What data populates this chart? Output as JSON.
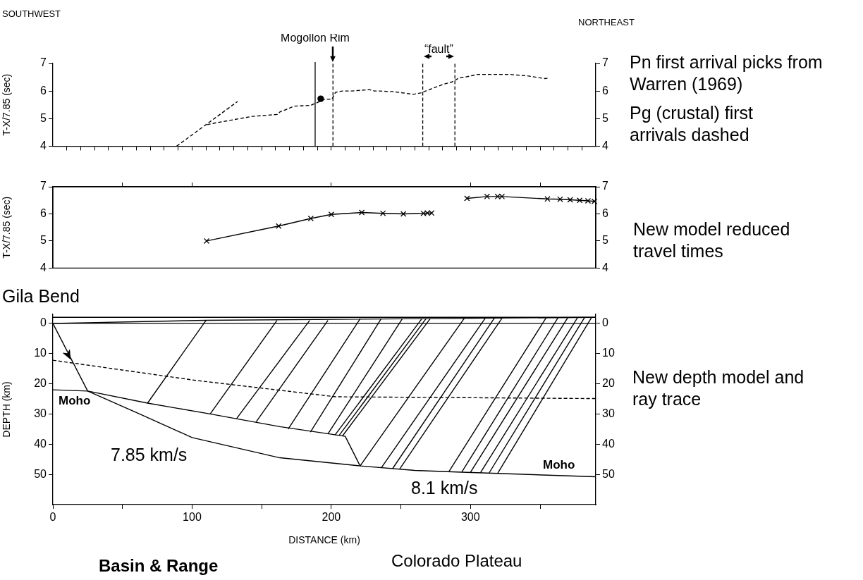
{
  "chart_data": [
    {
      "type": "line",
      "ylabel": "T-X/7.85 (sec)",
      "xlim": [
        0,
        390
      ],
      "ylim": [
        4,
        7
      ],
      "yticks": [
        4,
        5,
        6,
        7
      ],
      "y2lim": [
        4,
        7
      ],
      "y2ticks": [
        4,
        5,
        6,
        7
      ],
      "tick_labels": "y",
      "marker": "none",
      "xticks": [
        {
          "value": 10,
          "label": null
        },
        {
          "value": 20,
          "label": null
        },
        {
          "value": 30,
          "label": null
        },
        {
          "value": 40,
          "label": null
        },
        {
          "value": 50,
          "label": null
        },
        {
          "value": 60,
          "label": null
        },
        {
          "value": 70,
          "label": null
        },
        {
          "value": 80,
          "label": null
        },
        {
          "value": 90,
          "label": null
        },
        {
          "value": 100,
          "label": null
        },
        {
          "value": 110,
          "label": null
        },
        {
          "value": 120,
          "label": null
        },
        {
          "value": 130,
          "label": null
        },
        {
          "value": 140,
          "label": null
        },
        {
          "value": 150,
          "label": null
        },
        {
          "value": 160,
          "label": null
        },
        {
          "value": 170,
          "label": null
        },
        {
          "value": 180,
          "label": null
        },
        {
          "value": 190,
          "label": null
        },
        {
          "value": 200,
          "label": null
        },
        {
          "value": 210,
          "label": null
        },
        {
          "value": 220,
          "label": null
        },
        {
          "value": 230,
          "label": null
        },
        {
          "value": 240,
          "label": null
        },
        {
          "value": 250,
          "label": null
        },
        {
          "value": 260,
          "label": null
        },
        {
          "value": 270,
          "label": null
        },
        {
          "value": 280,
          "label": null
        },
        {
          "value": 290,
          "label": null
        },
        {
          "value": 300,
          "label": null
        },
        {
          "value": 310,
          "label": null
        },
        {
          "value": 320,
          "label": null
        },
        {
          "value": 330,
          "label": null
        },
        {
          "value": 340,
          "label": null
        },
        {
          "value": 350,
          "label": null
        },
        {
          "value": 360,
          "label": null
        },
        {
          "value": 370,
          "label": null
        },
        {
          "value": 380,
          "label": null
        }
      ],
      "series": [
        {
          "color": "#000000",
          "line_style": "dashed",
          "x": [
            88.9,
            132.7
          ],
          "values": [
            4.0,
            5.62
          ]
        },
        {
          "color": "#000000",
          "line_style": "dashed",
          "x": [
            110.8,
            117.5,
            143.4,
            161.3,
            163.3,
            166.1,
            173.3,
            185.3,
            195.2,
            200.4,
            203,
            208,
            215.1,
            227.1,
            231,
            235,
            241,
            244.2,
            259,
            264.2,
            280.8,
            286.8,
            292,
            296.8,
            304.7,
            306.7,
            328.6,
            340.6,
            353.7,
            356.5
          ],
          "values": [
            4.78,
            4.85,
            5.08,
            5.15,
            5.25,
            5.3,
            5.45,
            5.48,
            5.7,
            5.7,
            5.95,
            6.0,
            6.0,
            6.05,
            6.0,
            6.0,
            5.98,
            5.98,
            5.88,
            5.93,
            6.25,
            6.33,
            6.48,
            6.51,
            6.6,
            6.6,
            6.6,
            6.55,
            6.45,
            6.48
          ]
        },
        {
          "color": "#000000",
          "marker": "circle",
          "x": [
            192.4
          ],
          "values": [
            5.72
          ]
        }
      ],
      "ref_lines": [
        {
          "axis": "x",
          "value": 188.4,
          "label": "Mogollon Rim",
          "line_style": "solid"
        },
        {
          "axis": "x",
          "value": 201.2,
          "line_style": "dashed"
        },
        {
          "axis": "x",
          "value": 265.7,
          "line_style": "dashed"
        },
        {
          "axis": "x",
          "value": 288.8,
          "line_style": "dashed"
        }
      ],
      "annotations": [
        "SOUTHWEST",
        "NORTHEAST",
        "Pn first arrival picks from Warren (1969)",
        "Pg (crustal) first arrivals dashed",
        "“fault”"
      ]
    },
    {
      "type": "line",
      "ylabel": "T-X/7.85 (sec)",
      "xlim": [
        0,
        390
      ],
      "ylim": [
        4,
        7
      ],
      "yticks": [
        4,
        5,
        6,
        7
      ],
      "y2lim": [
        4,
        7
      ],
      "y2ticks": [
        4,
        5,
        6,
        7
      ],
      "tick_labels": "y",
      "marker": "cross",
      "xticks": [
        {
          "value": 50,
          "label": null
        },
        {
          "value": 100,
          "label": null
        },
        {
          "value": 200,
          "label": null
        },
        {
          "value": 300,
          "label": null
        },
        {
          "value": 350,
          "label": null
        }
      ],
      "series": [
        {
          "color": "#000000",
          "x": [
            110.4,
            162.2,
            185.3,
            200.0,
            221.9,
            237.1,
            251.8,
            266.2,
            269.0,
            272.1
          ],
          "values": [
            5.0,
            5.55,
            5.83,
            5.98,
            6.05,
            6.02,
            6.0,
            6.02,
            6.03,
            6.03
          ]
        },
        {
          "color": "#000000",
          "x": [
            297.5,
            311.9,
            319.5,
            322.6,
            355.3,
            364.4,
            371.6,
            378.4,
            384.4,
            389
          ],
          "values": [
            6.57,
            6.64,
            6.64,
            6.64,
            6.55,
            6.54,
            6.52,
            6.5,
            6.48,
            6.46
          ]
        }
      ],
      "annotations": [
        "New model reduced travel times"
      ]
    },
    {
      "type": "line",
      "xlabel": "DISTANCE (km)",
      "ylabel": "DEPTH (km)",
      "xlim": [
        0,
        390
      ],
      "ylim": [
        60,
        -3
      ],
      "yticks": [
        0,
        10,
        20,
        30,
        40,
        50
      ],
      "y2lim": [
        60,
        -3
      ],
      "y2ticks": [
        0,
        10,
        20,
        30,
        40,
        50
      ],
      "marker": "none",
      "xticks": [
        0,
        {
          "value": 50,
          "label": null
        },
        100,
        {
          "value": 150,
          "label": null
        },
        200,
        {
          "value": 250,
          "label": null
        },
        300,
        {
          "value": 350,
          "label": null
        }
      ],
      "series": [
        {
          "color": "#000000",
          "x": [
            0,
            25
          ],
          "values": [
            0,
            22.4
          ]
        },
        {
          "color": "#000000",
          "x": [
            0,
            390
          ],
          "values": [
            -2,
            -2
          ]
        },
        {
          "color": "#000000",
          "x": [
            0,
            390
          ],
          "values": [
            0,
            0
          ]
        },
        {
          "color": "#000000",
          "x": [
            0,
            110,
            390
          ],
          "values": [
            0,
            -1,
            -2
          ]
        },
        {
          "color": "#000000",
          "x": [
            0,
            25,
            68,
            113,
            163,
            200,
            210,
            220.7
          ],
          "values": [
            22,
            22.4,
            26.4,
            30,
            34.2,
            36.7,
            37.4,
            47.2
          ]
        },
        {
          "color": "#000000",
          "x": [
            25,
            60,
            100,
            163,
            220.7,
            260,
            290,
            390
          ],
          "values": [
            22.4,
            29.5,
            37.8,
            44.5,
            47.2,
            48.7,
            49.2,
            50.8
          ]
        },
        {
          "color": "#000000",
          "line_style": "dashed",
          "x": [
            0,
            103,
            203,
            390
          ],
          "values": [
            12.2,
            18.9,
            24.3,
            24.9
          ]
        },
        {
          "color": "#000000",
          "x": [
            110,
            68
          ],
          "values": [
            -1,
            26.4
          ]
        },
        {
          "color": "#000000",
          "x": [
            161,
            113
          ],
          "values": [
            -1,
            30
          ]
        },
        {
          "color": "#000000",
          "x": [
            184.5,
            132
          ],
          "values": [
            -1,
            31.5
          ]
        },
        {
          "color": "#000000",
          "x": [
            197.6,
            146
          ],
          "values": [
            -1,
            32.6
          ]
        },
        {
          "color": "#000000",
          "x": [
            220.7,
            169
          ],
          "values": [
            -1.5,
            35
          ]
        },
        {
          "color": "#000000",
          "x": [
            235.8,
            185
          ],
          "values": [
            -1.5,
            36
          ]
        },
        {
          "color": "#000000",
          "x": [
            251,
            197.6
          ],
          "values": [
            -1.5,
            36.6
          ]
        },
        {
          "color": "#000000",
          "x": [
            265,
            202.6
          ],
          "values": [
            -1.5,
            37
          ]
        },
        {
          "color": "#000000",
          "x": [
            268,
            205.6
          ],
          "values": [
            -1.5,
            37.1
          ]
        },
        {
          "color": "#000000",
          "x": [
            271,
            208
          ],
          "values": [
            -1.5,
            37.3
          ]
        },
        {
          "color": "#000000",
          "x": [
            296,
            220.7
          ],
          "values": [
            -2,
            47.2
          ]
        },
        {
          "color": "#000000",
          "x": [
            311,
            236
          ],
          "values": [
            -2,
            47.8
          ]
        },
        {
          "color": "#000000",
          "x": [
            317.5,
            244
          ],
          "values": [
            -2,
            48.1
          ]
        },
        {
          "color": "#000000",
          "x": [
            323,
            249
          ],
          "values": [
            -2,
            48.3
          ]
        },
        {
          "color": "#000000",
          "x": [
            354.5,
            284.6
          ],
          "values": [
            -2,
            49
          ]
        },
        {
          "color": "#000000",
          "x": [
            363,
            293.8
          ],
          "values": [
            -2,
            49.2
          ]
        },
        {
          "color": "#000000",
          "x": [
            370,
            300
          ],
          "values": [
            -2,
            49.3
          ]
        },
        {
          "color": "#000000",
          "x": [
            377,
            307.2
          ],
          "values": [
            -2,
            49.4
          ]
        },
        {
          "color": "#000000",
          "x": [
            382,
            313.4
          ],
          "values": [
            -2,
            49.5
          ]
        },
        {
          "color": "#000000",
          "x": [
            387,
            319.6
          ],
          "values": [
            -2,
            49.6
          ]
        }
      ],
      "annotations": [
        "Gila Bend",
        "New depth model and ray trace",
        "Basin & Range",
        "Colorado Plateau",
        "Moho",
        "Moho",
        "7.85 km/s",
        "8.1 km/s"
      ]
    }
  ]
}
